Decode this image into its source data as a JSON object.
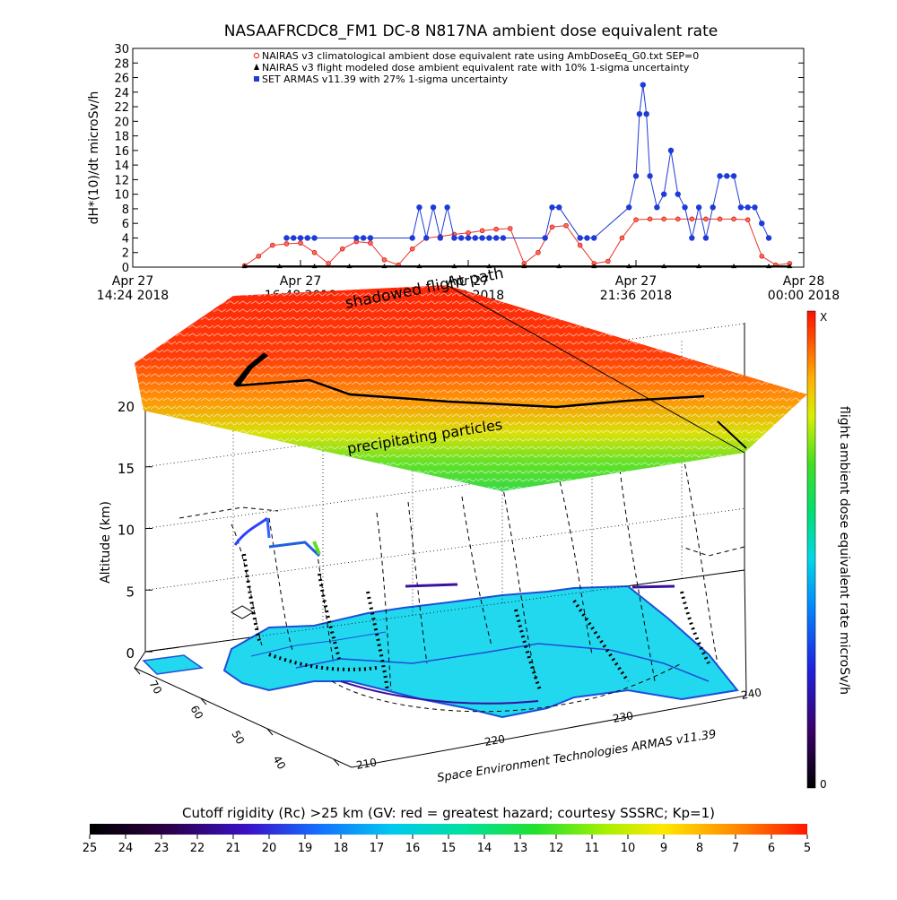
{
  "chart_data": [
    {
      "type": "scatter",
      "title": "NASAAFRCDC8_FM1 DC-8   N817NA ambient dose equivalent rate",
      "ylabel": "dH*(10)/dt microSv/h",
      "ylim": [
        0,
        30
      ],
      "yticks": [
        "0",
        "2",
        "4",
        "6",
        "8",
        "10",
        "12",
        "14",
        "16",
        "18",
        "20",
        "22",
        "24",
        "26",
        "28",
        "30"
      ],
      "xlim": [
        14.4,
        24.0
      ],
      "xticks": [
        {
          "t": 14.4,
          "line1": "Apr 27",
          "line2": "14:24 2018"
        },
        {
          "t": 16.8,
          "line1": "Apr 27",
          "line2": "16:48 2018"
        },
        {
          "t": 19.2,
          "line1": "Apr 27",
          "line2": "19:12 2018"
        },
        {
          "t": 21.6,
          "line1": "Apr 27",
          "line2": "21:36 2018"
        },
        {
          "t": 24.0,
          "line1": "Apr 28",
          "line2": "00:00 2018"
        }
      ],
      "legend": [
        {
          "marker": "circle",
          "color": "#e8352a",
          "label": "NAIRAS v3 climatological ambient dose equivalent rate using AmbDoseEq_G0.txt SEP=0"
        },
        {
          "marker": "triangle",
          "color": "#000000",
          "label": "NAIRAS v3 flight modeled dose ambient equivalent rate with 10% 1-sigma uncertainty"
        },
        {
          "marker": "square",
          "color": "#1e3bd8",
          "label": "SET ARMAS v11.39 with 27% 1-sigma uncertainty"
        }
      ],
      "series": [
        {
          "name": "NAIRAS v3 climatological ambient dose equivalent rate using AmbDoseEq_G0.txt SEP=0",
          "x": [
            16.0,
            16.2,
            16.4,
            16.6,
            16.8,
            17.0,
            17.2,
            17.4,
            17.6,
            17.8,
            18.0,
            18.2,
            18.4,
            18.6,
            18.8,
            19.0,
            19.2,
            19.4,
            19.6,
            19.8,
            20.0,
            20.2,
            20.4,
            20.6,
            20.8,
            21.0,
            21.2,
            21.4,
            21.6,
            21.8,
            22.0,
            22.2,
            22.4,
            22.6,
            22.8,
            23.0,
            23.2,
            23.4,
            23.6,
            23.8
          ],
          "values": [
            0.2,
            1.5,
            3.0,
            3.2,
            3.3,
            2.0,
            0.5,
            2.5,
            3.5,
            3.3,
            1.0,
            0.3,
            2.5,
            4.0,
            4.2,
            4.5,
            4.7,
            5.0,
            5.2,
            5.3,
            0.5,
            2.0,
            5.5,
            5.7,
            3.0,
            0.5,
            0.8,
            4.0,
            6.5,
            6.6,
            6.6,
            6.6,
            6.6,
            6.6,
            6.6,
            6.6,
            6.5,
            1.5,
            0.3,
            0.5
          ]
        },
        {
          "name": "NAIRAS v3 flight modeled dose ambient equivalent rate with 10% 1-sigma uncertainty",
          "x": [
            16.0,
            16.5,
            17.0,
            17.5,
            18.0,
            18.5,
            19.0,
            19.5,
            20.0,
            20.5,
            21.0,
            21.5,
            22.0,
            22.5,
            23.0,
            23.5,
            23.8
          ],
          "values": [
            0.1,
            0.1,
            0.1,
            0.1,
            0.1,
            0.1,
            0.1,
            0.1,
            0.1,
            0.1,
            0.1,
            0.1,
            0.1,
            0.1,
            0.1,
            0.1,
            0.1
          ]
        },
        {
          "name": "SET ARMAS v11.39 with 27% 1-sigma uncertainty",
          "x": [
            16.6,
            16.7,
            16.8,
            16.9,
            17.0,
            17.6,
            17.7,
            17.8,
            18.4,
            18.5,
            18.6,
            18.7,
            18.8,
            18.9,
            19.0,
            19.1,
            19.2,
            19.3,
            19.4,
            19.5,
            19.6,
            19.7,
            20.3,
            20.4,
            20.5,
            20.8,
            20.9,
            21.0,
            21.5,
            21.6,
            21.65,
            21.7,
            21.75,
            21.8,
            21.9,
            22.0,
            22.1,
            22.2,
            22.3,
            22.4,
            22.5,
            22.6,
            22.7,
            22.8,
            22.9,
            23.0,
            23.1,
            23.2,
            23.3,
            23.4,
            23.5
          ],
          "values": [
            4.0,
            4.0,
            4.0,
            4.0,
            4.0,
            4.0,
            4.0,
            4.0,
            4.0,
            8.2,
            4.0,
            8.2,
            4.0,
            8.2,
            4.0,
            4.0,
            4.0,
            4.0,
            4.0,
            4.0,
            4.0,
            4.0,
            4.0,
            8.2,
            8.2,
            4.0,
            4.0,
            4.0,
            8.2,
            12.5,
            21.0,
            25.0,
            21.0,
            12.5,
            8.2,
            10.0,
            16.0,
            10.0,
            8.2,
            4.0,
            8.2,
            4.0,
            8.2,
            12.5,
            12.5,
            12.5,
            8.2,
            8.2,
            8.2,
            6.0,
            4.0
          ]
        }
      ]
    },
    {
      "type": "surface",
      "labels": {
        "shadowed_flight_path": "shadowed flight path",
        "precipitating_particles": "precipitating particles",
        "footer_credit": "Space Environment Technologies ARMAS v11.39"
      },
      "zlabel": "Altitude (km)",
      "zticks": [
        "0",
        "5",
        "10",
        "15",
        "20"
      ],
      "lat_ticks": [
        "70",
        "60",
        "50",
        "40"
      ],
      "lon_ticks": [
        "210",
        "220",
        "230",
        "240"
      ],
      "right_colorbar": {
        "label": "flight ambient dose equivalent rate microSv/h",
        "top": "X",
        "bottom": "0"
      },
      "bottom_colorbar": {
        "label": "Cutoff rigidity (Rc) >25 km (GV: red = greatest hazard; courtesy SSSRC; Kp=1)",
        "ticks": [
          "25",
          "24",
          "23",
          "22",
          "21",
          "20",
          "19",
          "18",
          "17",
          "16",
          "15",
          "14",
          "13",
          "12",
          "11",
          "10",
          "9",
          "8",
          "7",
          "6",
          "5"
        ]
      },
      "colors": {
        "land": "#22d8ee",
        "land_edge": "#1d4fd8",
        "hot": "#ff2a00",
        "mid": "#ffd400",
        "cool": "#38e030"
      }
    }
  ]
}
